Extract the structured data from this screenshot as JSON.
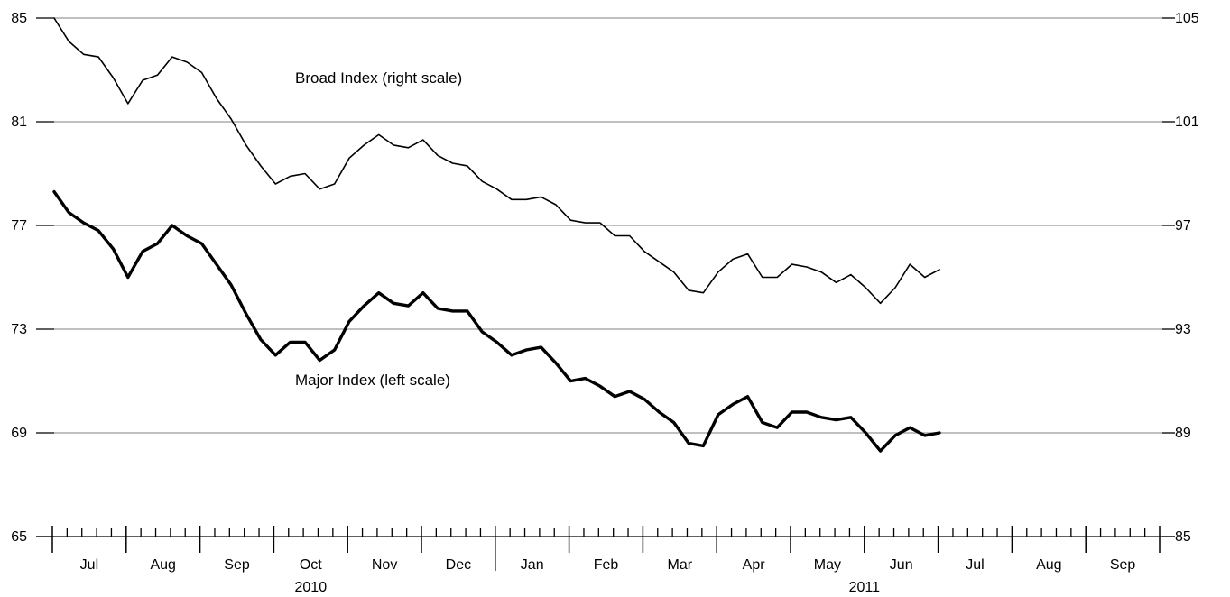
{
  "chart_data": {
    "type": "line",
    "title": "",
    "left_axis": {
      "ylim": [
        65,
        85
      ],
      "ticks": [
        65,
        69,
        73,
        77,
        81,
        85
      ]
    },
    "right_axis": {
      "ylim": [
        85,
        105
      ],
      "ticks": [
        85,
        89,
        93,
        97,
        101,
        105
      ]
    },
    "grid": true,
    "x_axis": {
      "months": [
        "Jul",
        "Aug",
        "Sep",
        "Oct",
        "Nov",
        "Dec",
        "Jan",
        "Feb",
        "Mar",
        "Apr",
        "May",
        "Jun",
        "Jul",
        "Aug",
        "Sep"
      ],
      "years": [
        {
          "label": "2010",
          "month_index_center": 3
        },
        {
          "label": "2011",
          "month_index_center": 10.5
        }
      ],
      "weeks_per_month": 4,
      "start_offset_weeks": 0
    },
    "annotations": [
      {
        "text": "Broad Index (right scale)",
        "series": "broad"
      },
      {
        "text": "Major Index (left scale)",
        "series": "major"
      }
    ],
    "series": [
      {
        "id": "broad",
        "axis": "right",
        "values": [
          105.0,
          104.1,
          103.6,
          103.5,
          102.7,
          101.7,
          102.6,
          102.8,
          103.5,
          103.3,
          102.9,
          101.9,
          101.1,
          100.1,
          99.3,
          98.6,
          98.9,
          99.0,
          98.4,
          98.6,
          99.6,
          100.1,
          100.5,
          100.1,
          100.0,
          100.3,
          99.7,
          99.4,
          99.3,
          98.7,
          98.4,
          98.0,
          98.0,
          98.1,
          97.8,
          97.2,
          97.1,
          97.1,
          96.6,
          96.6,
          96.0,
          95.6,
          95.2,
          94.5,
          94.4,
          95.2,
          95.7,
          95.9,
          95.0,
          95.0,
          95.5,
          95.4,
          95.2,
          94.8,
          95.1,
          94.6,
          94.0,
          94.6,
          95.5,
          95.0,
          95.3
        ]
      },
      {
        "id": "major",
        "axis": "left",
        "values": [
          78.3,
          77.5,
          77.1,
          76.8,
          76.1,
          75.0,
          76.0,
          76.3,
          77.0,
          76.6,
          76.3,
          75.5,
          74.7,
          73.6,
          72.6,
          72.0,
          72.5,
          72.5,
          71.8,
          72.2,
          73.3,
          73.9,
          74.4,
          74.0,
          73.9,
          74.4,
          73.8,
          73.7,
          73.7,
          72.9,
          72.5,
          72.0,
          72.2,
          72.3,
          71.7,
          71.0,
          71.1,
          70.8,
          70.4,
          70.6,
          70.3,
          69.8,
          69.4,
          68.6,
          68.5,
          69.7,
          70.1,
          70.4,
          69.4,
          69.2,
          69.8,
          69.8,
          69.6,
          69.5,
          69.6,
          69.0,
          68.3,
          68.9,
          69.2,
          68.9,
          69.0
        ]
      }
    ]
  }
}
